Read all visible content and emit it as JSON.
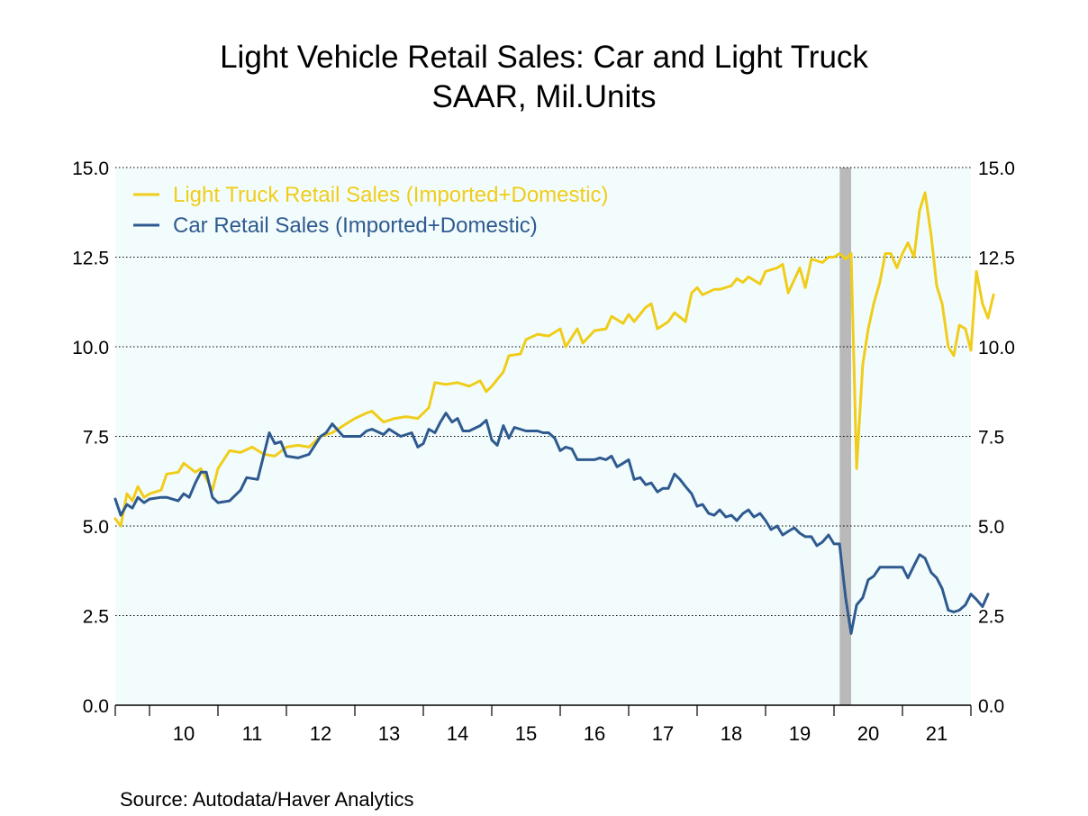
{
  "chart_data": {
    "type": "line",
    "title": "Light Vehicle Retail Sales: Car and Light Truck",
    "subtitle": "SAAR, Mil.Units",
    "ylim": [
      0,
      15
    ],
    "y_ticks": [
      "0.0",
      "2.5",
      "5.0",
      "7.5",
      "10.0",
      "12.5",
      "15.0"
    ],
    "y_tick_values": [
      0,
      2.5,
      5,
      7.5,
      10,
      12.5,
      15
    ],
    "x_range_years": [
      2009.5,
      2022.0
    ],
    "x_tick_labels": [
      "10",
      "11",
      "12",
      "13",
      "14",
      "15",
      "16",
      "17",
      "18",
      "19",
      "20",
      "21"
    ],
    "x_tick_centers": [
      2010.5,
      2011.5,
      2012.5,
      2013.5,
      2014.5,
      2015.5,
      2016.5,
      2017.5,
      2018.5,
      2019.5,
      2020.5,
      2021.5
    ],
    "grid": "horizontal dotted",
    "legend_placement": "top-left",
    "recession_shading": [
      2020.083,
      2020.25
    ],
    "series": [
      {
        "name": "Light Truck Retail Sales (Imported+Domestic)",
        "color": "#f0cd1a",
        "points": [
          [
            2009.5,
            5.2
          ],
          [
            2009.58,
            5.0
          ],
          [
            2009.67,
            5.9
          ],
          [
            2009.75,
            5.7
          ],
          [
            2009.83,
            6.1
          ],
          [
            2009.92,
            5.8
          ],
          [
            2010.0,
            5.9
          ],
          [
            2010.17,
            6.0
          ],
          [
            2010.25,
            6.45
          ],
          [
            2010.42,
            6.5
          ],
          [
            2010.5,
            6.75
          ],
          [
            2010.67,
            6.5
          ],
          [
            2010.75,
            6.6
          ],
          [
            2010.92,
            6.0
          ],
          [
            2011.0,
            6.6
          ],
          [
            2011.17,
            7.1
          ],
          [
            2011.33,
            7.05
          ],
          [
            2011.5,
            7.2
          ],
          [
            2011.67,
            7.0
          ],
          [
            2011.83,
            6.95
          ],
          [
            2012.0,
            7.2
          ],
          [
            2012.17,
            7.25
          ],
          [
            2012.33,
            7.2
          ],
          [
            2012.5,
            7.5
          ],
          [
            2012.67,
            7.6
          ],
          [
            2012.83,
            7.8
          ],
          [
            2013.0,
            8.0
          ],
          [
            2013.17,
            8.15
          ],
          [
            2013.25,
            8.2
          ],
          [
            2013.42,
            7.9
          ],
          [
            2013.58,
            8.0
          ],
          [
            2013.75,
            8.05
          ],
          [
            2013.92,
            8.0
          ],
          [
            2014.08,
            8.3
          ],
          [
            2014.17,
            9.0
          ],
          [
            2014.33,
            8.95
          ],
          [
            2014.5,
            9.0
          ],
          [
            2014.67,
            8.9
          ],
          [
            2014.83,
            9.05
          ],
          [
            2014.92,
            8.75
          ],
          [
            2015.0,
            8.9
          ],
          [
            2015.17,
            9.3
          ],
          [
            2015.25,
            9.75
          ],
          [
            2015.42,
            9.8
          ],
          [
            2015.5,
            10.2
          ],
          [
            2015.67,
            10.35
          ],
          [
            2015.83,
            10.3
          ],
          [
            2016.0,
            10.5
          ],
          [
            2016.08,
            10.0
          ],
          [
            2016.25,
            10.5
          ],
          [
            2016.33,
            10.1
          ],
          [
            2016.5,
            10.45
          ],
          [
            2016.67,
            10.5
          ],
          [
            2016.75,
            10.85
          ],
          [
            2016.92,
            10.65
          ],
          [
            2017.0,
            10.9
          ],
          [
            2017.08,
            10.7
          ],
          [
            2017.25,
            11.1
          ],
          [
            2017.33,
            11.2
          ],
          [
            2017.42,
            10.5
          ],
          [
            2017.58,
            10.7
          ],
          [
            2017.67,
            10.95
          ],
          [
            2017.83,
            10.7
          ],
          [
            2017.92,
            11.5
          ],
          [
            2018.0,
            11.65
          ],
          [
            2018.08,
            11.45
          ],
          [
            2018.25,
            11.6
          ],
          [
            2018.33,
            11.6
          ],
          [
            2018.5,
            11.7
          ],
          [
            2018.58,
            11.9
          ],
          [
            2018.67,
            11.8
          ],
          [
            2018.75,
            11.95
          ],
          [
            2018.92,
            11.75
          ],
          [
            2019.0,
            12.1
          ],
          [
            2019.17,
            12.2
          ],
          [
            2019.25,
            12.3
          ],
          [
            2019.33,
            11.5
          ],
          [
            2019.5,
            12.2
          ],
          [
            2019.58,
            11.65
          ],
          [
            2019.67,
            12.45
          ],
          [
            2019.83,
            12.35
          ],
          [
            2019.92,
            12.5
          ],
          [
            2020.0,
            12.5
          ],
          [
            2020.08,
            12.6
          ],
          [
            2020.17,
            12.45
          ],
          [
            2020.25,
            12.6
          ],
          [
            2020.33,
            6.6
          ],
          [
            2020.42,
            9.5
          ],
          [
            2020.5,
            10.5
          ],
          [
            2020.58,
            11.2
          ],
          [
            2020.67,
            11.8
          ],
          [
            2020.75,
            12.6
          ],
          [
            2020.83,
            12.6
          ],
          [
            2020.92,
            12.2
          ],
          [
            2021.0,
            12.6
          ],
          [
            2021.08,
            12.9
          ],
          [
            2021.17,
            12.5
          ],
          [
            2021.25,
            13.8
          ],
          [
            2021.33,
            14.3
          ],
          [
            2021.42,
            13.1
          ],
          [
            2021.5,
            11.7
          ],
          [
            2021.58,
            11.2
          ],
          [
            2021.67,
            10.0
          ],
          [
            2021.75,
            9.75
          ],
          [
            2021.83,
            10.6
          ],
          [
            2021.92,
            10.5
          ],
          [
            2022.0,
            9.9
          ],
          [
            2022.08,
            12.1
          ],
          [
            2022.17,
            11.2
          ],
          [
            2022.25,
            10.8
          ],
          [
            2022.33,
            11.45
          ]
        ]
      },
      {
        "name": "Car Retail Sales (Imported+Domestic)",
        "color": "#2f5a8f",
        "points": [
          [
            2009.5,
            5.75
          ],
          [
            2009.58,
            5.3
          ],
          [
            2009.67,
            5.6
          ],
          [
            2009.75,
            5.5
          ],
          [
            2009.83,
            5.8
          ],
          [
            2009.92,
            5.65
          ],
          [
            2010.0,
            5.75
          ],
          [
            2010.17,
            5.8
          ],
          [
            2010.25,
            5.8
          ],
          [
            2010.42,
            5.7
          ],
          [
            2010.5,
            5.9
          ],
          [
            2010.58,
            5.8
          ],
          [
            2010.67,
            6.2
          ],
          [
            2010.75,
            6.5
          ],
          [
            2010.83,
            6.5
          ],
          [
            2010.92,
            5.8
          ],
          [
            2011.0,
            5.65
          ],
          [
            2011.17,
            5.7
          ],
          [
            2011.33,
            6.0
          ],
          [
            2011.42,
            6.35
          ],
          [
            2011.58,
            6.3
          ],
          [
            2011.75,
            7.6
          ],
          [
            2011.83,
            7.3
          ],
          [
            2011.92,
            7.35
          ],
          [
            2012.0,
            6.95
          ],
          [
            2012.17,
            6.9
          ],
          [
            2012.33,
            7.0
          ],
          [
            2012.5,
            7.5
          ],
          [
            2012.58,
            7.6
          ],
          [
            2012.67,
            7.85
          ],
          [
            2012.83,
            7.5
          ],
          [
            2012.92,
            7.5
          ],
          [
            2013.08,
            7.5
          ],
          [
            2013.17,
            7.65
          ],
          [
            2013.25,
            7.7
          ],
          [
            2013.42,
            7.55
          ],
          [
            2013.5,
            7.7
          ],
          [
            2013.67,
            7.5
          ],
          [
            2013.83,
            7.6
          ],
          [
            2013.92,
            7.2
          ],
          [
            2014.0,
            7.3
          ],
          [
            2014.08,
            7.7
          ],
          [
            2014.17,
            7.6
          ],
          [
            2014.25,
            7.9
          ],
          [
            2014.33,
            8.15
          ],
          [
            2014.42,
            7.9
          ],
          [
            2014.5,
            8.0
          ],
          [
            2014.58,
            7.65
          ],
          [
            2014.67,
            7.65
          ],
          [
            2014.83,
            7.8
          ],
          [
            2014.92,
            7.95
          ],
          [
            2015.0,
            7.4
          ],
          [
            2015.08,
            7.25
          ],
          [
            2015.17,
            7.8
          ],
          [
            2015.25,
            7.45
          ],
          [
            2015.33,
            7.75
          ],
          [
            2015.5,
            7.65
          ],
          [
            2015.67,
            7.65
          ],
          [
            2015.75,
            7.6
          ],
          [
            2015.83,
            7.6
          ],
          [
            2015.92,
            7.45
          ],
          [
            2016.0,
            7.1
          ],
          [
            2016.08,
            7.2
          ],
          [
            2016.17,
            7.15
          ],
          [
            2016.25,
            6.85
          ],
          [
            2016.42,
            6.85
          ],
          [
            2016.5,
            6.85
          ],
          [
            2016.58,
            6.9
          ],
          [
            2016.67,
            6.85
          ],
          [
            2016.75,
            6.95
          ],
          [
            2016.83,
            6.65
          ],
          [
            2016.92,
            6.75
          ],
          [
            2017.0,
            6.85
          ],
          [
            2017.08,
            6.3
          ],
          [
            2017.17,
            6.35
          ],
          [
            2017.25,
            6.15
          ],
          [
            2017.33,
            6.2
          ],
          [
            2017.42,
            5.95
          ],
          [
            2017.5,
            6.05
          ],
          [
            2017.58,
            6.05
          ],
          [
            2017.67,
            6.45
          ],
          [
            2017.75,
            6.3
          ],
          [
            2017.83,
            6.1
          ],
          [
            2017.92,
            5.9
          ],
          [
            2018.0,
            5.55
          ],
          [
            2018.08,
            5.6
          ],
          [
            2018.17,
            5.35
          ],
          [
            2018.25,
            5.3
          ],
          [
            2018.33,
            5.45
          ],
          [
            2018.42,
            5.25
          ],
          [
            2018.5,
            5.3
          ],
          [
            2018.58,
            5.15
          ],
          [
            2018.67,
            5.35
          ],
          [
            2018.75,
            5.45
          ],
          [
            2018.83,
            5.25
          ],
          [
            2018.92,
            5.35
          ],
          [
            2019.0,
            5.15
          ],
          [
            2019.08,
            4.9
          ],
          [
            2019.17,
            5.0
          ],
          [
            2019.25,
            4.75
          ],
          [
            2019.33,
            4.85
          ],
          [
            2019.42,
            4.95
          ],
          [
            2019.5,
            4.8
          ],
          [
            2019.58,
            4.7
          ],
          [
            2019.67,
            4.7
          ],
          [
            2019.75,
            4.45
          ],
          [
            2019.83,
            4.55
          ],
          [
            2019.92,
            4.75
          ],
          [
            2020.0,
            4.5
          ],
          [
            2020.08,
            4.5
          ],
          [
            2020.17,
            3.0
          ],
          [
            2020.25,
            2.0
          ],
          [
            2020.33,
            2.8
          ],
          [
            2020.42,
            3.0
          ],
          [
            2020.5,
            3.5
          ],
          [
            2020.58,
            3.6
          ],
          [
            2020.67,
            3.85
          ],
          [
            2020.75,
            3.85
          ],
          [
            2020.83,
            3.85
          ],
          [
            2020.92,
            3.85
          ],
          [
            2021.0,
            3.85
          ],
          [
            2021.08,
            3.55
          ],
          [
            2021.17,
            3.9
          ],
          [
            2021.25,
            4.2
          ],
          [
            2021.33,
            4.1
          ],
          [
            2021.42,
            3.7
          ],
          [
            2021.5,
            3.55
          ],
          [
            2021.58,
            3.25
          ],
          [
            2021.67,
            2.65
          ],
          [
            2021.75,
            2.6
          ],
          [
            2021.83,
            2.65
          ],
          [
            2021.92,
            2.8
          ],
          [
            2022.0,
            3.1
          ],
          [
            2022.08,
            2.95
          ],
          [
            2022.17,
            2.75
          ],
          [
            2022.25,
            3.1
          ]
        ]
      }
    ],
    "source": "Source:  Autodata/Haver Analytics"
  }
}
